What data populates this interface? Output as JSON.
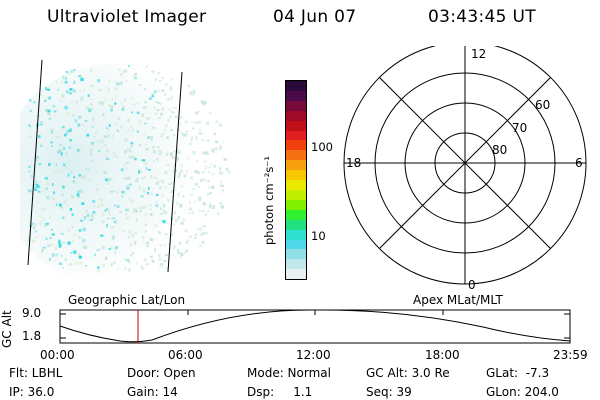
{
  "header": {
    "title": "Ultraviolet Imager",
    "date": "04 Jun 07",
    "time": "03:43:45 UT"
  },
  "colorbar": {
    "unit_label": "photon cm⁻²s⁻¹",
    "ticks": [
      "100",
      "10"
    ],
    "colors": [
      "#2a0a3a",
      "#4a0a4a",
      "#7a0a3a",
      "#a00a2a",
      "#c0101a",
      "#e02020",
      "#f04010",
      "#f57010",
      "#f7a010",
      "#f5c800",
      "#e8e800",
      "#c0f000",
      "#80f000",
      "#30f030",
      "#20e080",
      "#30e0d0",
      "#50d8e8",
      "#90e0e8",
      "#c0e8ec",
      "#e8f0f2"
    ]
  },
  "polar": {
    "mlt_labels": [
      "12",
      "18",
      "6",
      "0"
    ],
    "lat_labels": [
      "60",
      "70",
      "80"
    ]
  },
  "timeline": {
    "left_label": "Geographic Lat/Lon",
    "right_label": "Apex  MLat/MLT",
    "axis_title": "GC Alt",
    "y_ticks": [
      "9.0",
      "1.8"
    ],
    "x_ticks": [
      "00:00",
      "06:00",
      "12:00",
      "18:00",
      "23:59"
    ],
    "marker_color": "#c00000"
  },
  "info": {
    "row1": [
      "Flt: LBHL",
      "Door: Open",
      "Mode: Normal",
      "GC Alt: 3.0 Re",
      "GLat:  -7.3"
    ],
    "row2": [
      "IP: 36.0",
      "Gain: 14",
      "Dsp:     1.1",
      "Seq: 39",
      "GLon: 204.0"
    ]
  }
}
